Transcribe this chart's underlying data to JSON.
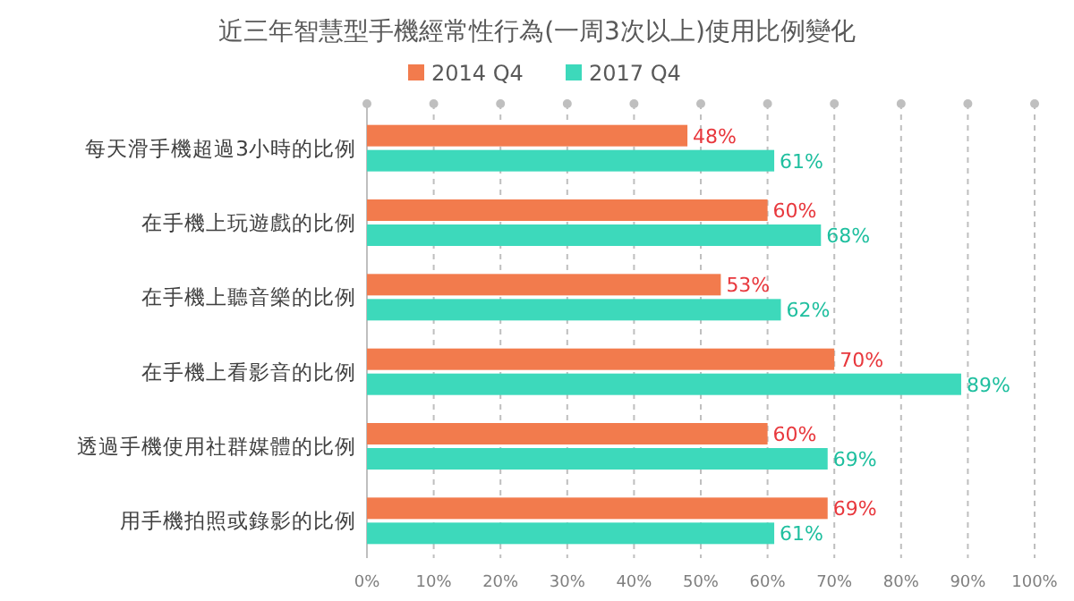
{
  "chart_data": {
    "type": "bar",
    "orientation": "horizontal",
    "title": "近三年智慧型手機經常性行為(一周3次以上)使用比例變化",
    "categories": [
      "每天滑手機超過3小時的比例",
      "在手機上玩遊戲的比例",
      "在手機上聽音樂的比例",
      "在手機上看影音的比例",
      "透過手機使用社群媒體的比例",
      "用手機拍照或錄影的比例"
    ],
    "series": [
      {
        "name": "2014 Q4",
        "color": "#f27b4d",
        "values": [
          48,
          60,
          53,
          70,
          60,
          69
        ],
        "value_labels": [
          "48%",
          "60%",
          "53%",
          "70%",
          "60%",
          "69%"
        ]
      },
      {
        "name": "2017 Q4",
        "color": "#3dd9bb",
        "values": [
          61,
          68,
          62,
          89,
          69,
          61
        ],
        "value_labels": [
          "61%",
          "68%",
          "62%",
          "89%",
          "69%",
          "61%"
        ]
      }
    ],
    "xlim": [
      0,
      100
    ],
    "xticks": [
      {
        "value": 0,
        "label": "0%"
      },
      {
        "value": 10,
        "label": "10%"
      },
      {
        "value": 20,
        "label": "20%"
      },
      {
        "value": 30,
        "label": "30%"
      },
      {
        "value": 40,
        "label": "40%"
      },
      {
        "value": 50,
        "label": "50%"
      },
      {
        "value": 60,
        "label": "60%"
      },
      {
        "value": 70,
        "label": "70%"
      },
      {
        "value": 80,
        "label": "80%"
      },
      {
        "value": 90,
        "label": "90%"
      },
      {
        "value": 100,
        "label": "100%"
      }
    ],
    "grid": "x",
    "legend": "top"
  }
}
